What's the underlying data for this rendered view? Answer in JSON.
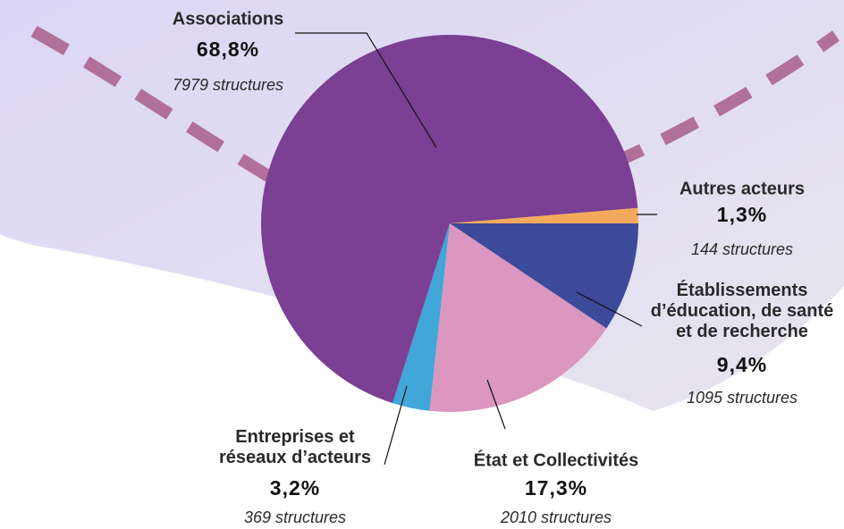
{
  "chart_data": {
    "type": "pie",
    "categories": [
      "Établissements\nd’éducation, de santé\net de recherche",
      "État et Collectivités",
      "Entreprises et\nréseaux d’acteurs",
      "Associations",
      "Autres acteurs"
    ],
    "values": [
      9.4,
      17.3,
      3.2,
      68.8,
      1.3
    ],
    "value_labels": [
      "9,4%",
      "17,3%",
      "3,2%",
      "68,8%",
      "1,3%"
    ],
    "sublabels": [
      "1095 structures",
      "2010 structures",
      "369 structures",
      "7979 structures",
      "144 structures"
    ],
    "colors": [
      "#3c4a9a",
      "#db97bf",
      "#41a6d8",
      "#7b3f93",
      "#f5a95c"
    ]
  }
}
